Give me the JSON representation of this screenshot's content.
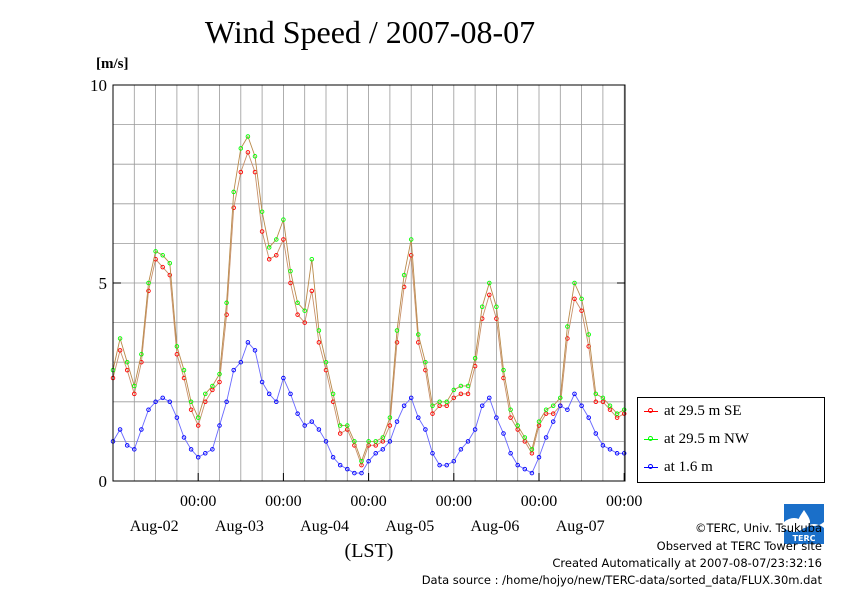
{
  "title": "Wind Speed / 2007-08-07",
  "unit_label": "[m/s]",
  "footer": {
    "copyright": "©TERC, Univ. Tsukuba",
    "observed": "Observed at TERC Tower site",
    "created": "Created Automatically at 2007-08-07/23:32:16",
    "source": "Data source : /home/hojyo/new/TERC-data/sorted_data/FLUX.30m.dat",
    "logo_text": "TERC"
  },
  "chart_data": {
    "type": "line",
    "title": "Wind Speed / 2007-08-07",
    "ylabel": "[m/s]",
    "xlabel": "(LST)",
    "ylim": [
      0,
      10
    ],
    "xlim": [
      0,
      144
    ],
    "grid": true,
    "legend_position": "right-bottom-outside",
    "y_ticks": [
      {
        "value": 0,
        "label": "0"
      },
      {
        "value": 5,
        "label": "5"
      },
      {
        "value": 10,
        "label": "10"
      }
    ],
    "x_ticks": [
      {
        "value": 24,
        "time": "00:00",
        "date": "Aug-02"
      },
      {
        "value": 48,
        "time": "00:00",
        "date": "Aug-03"
      },
      {
        "value": 72,
        "time": "00:00",
        "date": "Aug-04"
      },
      {
        "value": 96,
        "time": "00:00",
        "date": "Aug-05"
      },
      {
        "value": 120,
        "time": "00:00",
        "date": "Aug-06"
      },
      {
        "value": 144,
        "time": "00:00",
        "date": "Aug-07"
      }
    ],
    "series": [
      {
        "name": "at 29.5 m SE",
        "color": "#ff0000",
        "x_hours": [
          0,
          2,
          4,
          6,
          8,
          10,
          12,
          14,
          16,
          18,
          20,
          22,
          24,
          26,
          28,
          30,
          32,
          34,
          36,
          38,
          40,
          42,
          44,
          46,
          48,
          50,
          52,
          54,
          56,
          58,
          60,
          62,
          64,
          66,
          68,
          70,
          72,
          74,
          76,
          78,
          80,
          82,
          84,
          86,
          88,
          90,
          92,
          94,
          96,
          98,
          100,
          102,
          104,
          106,
          108,
          110,
          112,
          114,
          116,
          118,
          120,
          122,
          124,
          126,
          128,
          130,
          132,
          134,
          136,
          138,
          140,
          142,
          144
        ],
        "values": [
          2.6,
          3.3,
          2.8,
          2.2,
          3.0,
          4.8,
          5.6,
          5.4,
          5.2,
          3.2,
          2.6,
          1.8,
          1.4,
          2.0,
          2.3,
          2.5,
          4.2,
          6.9,
          7.8,
          8.3,
          7.8,
          6.3,
          5.6,
          5.7,
          6.1,
          5.0,
          4.2,
          4.0,
          4.8,
          3.5,
          2.8,
          2.0,
          1.2,
          1.3,
          0.9,
          0.4,
          0.9,
          0.9,
          1.0,
          1.4,
          3.5,
          4.9,
          5.7,
          3.5,
          2.8,
          1.7,
          1.9,
          1.9,
          2.1,
          2.2,
          2.2,
          2.9,
          4.1,
          4.7,
          4.1,
          2.6,
          1.6,
          1.3,
          1.0,
          0.7,
          1.4,
          1.7,
          1.7,
          1.9,
          3.6,
          4.6,
          4.3,
          3.4,
          2.0,
          2.0,
          1.8,
          1.6,
          1.7
        ]
      },
      {
        "name": "at 29.5 m NW",
        "color": "#00ff00",
        "x_hours": [
          0,
          2,
          4,
          6,
          8,
          10,
          12,
          14,
          16,
          18,
          20,
          22,
          24,
          26,
          28,
          30,
          32,
          34,
          36,
          38,
          40,
          42,
          44,
          46,
          48,
          50,
          52,
          54,
          56,
          58,
          60,
          62,
          64,
          66,
          68,
          70,
          72,
          74,
          76,
          78,
          80,
          82,
          84,
          86,
          88,
          90,
          92,
          94,
          96,
          98,
          100,
          102,
          104,
          106,
          108,
          110,
          112,
          114,
          116,
          118,
          120,
          122,
          124,
          126,
          128,
          130,
          132,
          134,
          136,
          138,
          140,
          142,
          144
        ],
        "values": [
          2.8,
          3.6,
          3.0,
          2.4,
          3.2,
          5.0,
          5.8,
          5.7,
          5.5,
          3.4,
          2.8,
          2.0,
          1.6,
          2.2,
          2.4,
          2.7,
          4.5,
          7.3,
          8.4,
          8.7,
          8.2,
          6.8,
          5.9,
          6.1,
          6.6,
          5.3,
          4.5,
          4.3,
          5.6,
          3.8,
          3.0,
          2.2,
          1.4,
          1.4,
          1.0,
          0.5,
          1.0,
          1.0,
          1.1,
          1.6,
          3.8,
          5.2,
          6.1,
          3.7,
          3.0,
          1.9,
          2.0,
          2.0,
          2.3,
          2.4,
          2.4,
          3.1,
          4.4,
          5.0,
          4.4,
          2.8,
          1.8,
          1.4,
          1.1,
          0.8,
          1.5,
          1.8,
          1.9,
          2.1,
          3.9,
          5.0,
          4.6,
          3.7,
          2.2,
          2.1,
          1.9,
          1.7,
          1.8
        ]
      },
      {
        "name": "at 1.6 m",
        "color": "#0000ff",
        "x_hours": [
          0,
          2,
          4,
          6,
          8,
          10,
          12,
          14,
          16,
          18,
          20,
          22,
          24,
          26,
          28,
          30,
          32,
          34,
          36,
          38,
          40,
          42,
          44,
          46,
          48,
          50,
          52,
          54,
          56,
          58,
          60,
          62,
          64,
          66,
          68,
          70,
          72,
          74,
          76,
          78,
          80,
          82,
          84,
          86,
          88,
          90,
          92,
          94,
          96,
          98,
          100,
          102,
          104,
          106,
          108,
          110,
          112,
          114,
          116,
          118,
          120,
          122,
          124,
          126,
          128,
          130,
          132,
          134,
          136,
          138,
          140,
          142,
          144
        ],
        "values": [
          1.0,
          1.3,
          0.9,
          0.8,
          1.3,
          1.8,
          2.0,
          2.1,
          2.0,
          1.6,
          1.1,
          0.8,
          0.6,
          0.7,
          0.8,
          1.4,
          2.0,
          2.8,
          3.0,
          3.5,
          3.3,
          2.5,
          2.2,
          2.0,
          2.6,
          2.2,
          1.7,
          1.4,
          1.5,
          1.3,
          1.0,
          0.6,
          0.4,
          0.3,
          0.2,
          0.2,
          0.5,
          0.7,
          0.8,
          1.0,
          1.5,
          1.9,
          2.1,
          1.6,
          1.3,
          0.7,
          0.4,
          0.4,
          0.5,
          0.8,
          1.0,
          1.3,
          1.9,
          2.1,
          1.6,
          1.2,
          0.7,
          0.4,
          0.3,
          0.2,
          0.6,
          1.1,
          1.5,
          1.9,
          1.8,
          2.2,
          1.9,
          1.6,
          1.2,
          0.9,
          0.8,
          0.7,
          0.7
        ]
      }
    ]
  }
}
